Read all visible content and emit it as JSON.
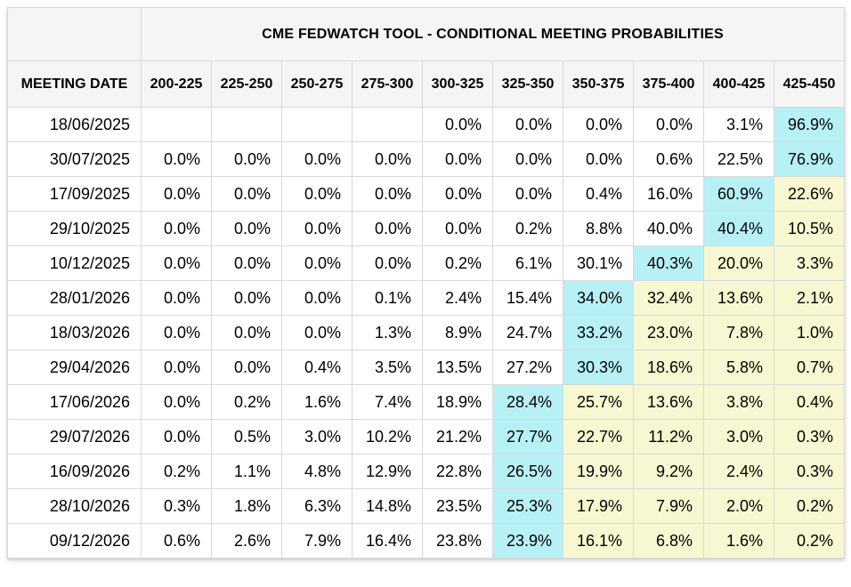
{
  "colors": {
    "header_bg": "#f5f5f6",
    "grid_border": "#d9d9d9",
    "max_probability_highlight": "#b7f0f5",
    "right_tail_highlight": "#f7f7d1"
  },
  "chart_data": {
    "type": "table",
    "title": "CME FEDWATCH TOOL - CONDITIONAL MEETING PROBABILITIES",
    "row_header": "MEETING DATE",
    "columns": [
      "200-225",
      "225-250",
      "250-275",
      "275-300",
      "300-325",
      "325-350",
      "350-375",
      "375-400",
      "400-425",
      "425-450"
    ],
    "legend": {
      "cyan_cells": "highest probability in row",
      "yellow_cells": "cells right of highest probability"
    },
    "rows": [
      {
        "date": "18/06/2025",
        "values": [
          "",
          "",
          "",
          "",
          "0.0%",
          "0.0%",
          "0.0%",
          "0.0%",
          "3.1%",
          "96.9%"
        ],
        "max_col": 9
      },
      {
        "date": "30/07/2025",
        "values": [
          "0.0%",
          "0.0%",
          "0.0%",
          "0.0%",
          "0.0%",
          "0.0%",
          "0.0%",
          "0.6%",
          "22.5%",
          "76.9%"
        ],
        "max_col": 9
      },
      {
        "date": "17/09/2025",
        "values": [
          "0.0%",
          "0.0%",
          "0.0%",
          "0.0%",
          "0.0%",
          "0.0%",
          "0.4%",
          "16.0%",
          "60.9%",
          "22.6%"
        ],
        "max_col": 8
      },
      {
        "date": "29/10/2025",
        "values": [
          "0.0%",
          "0.0%",
          "0.0%",
          "0.0%",
          "0.0%",
          "0.2%",
          "8.8%",
          "40.0%",
          "40.4%",
          "10.5%"
        ],
        "max_col": 8
      },
      {
        "date": "10/12/2025",
        "values": [
          "0.0%",
          "0.0%",
          "0.0%",
          "0.0%",
          "0.2%",
          "6.1%",
          "30.1%",
          "40.3%",
          "20.0%",
          "3.3%"
        ],
        "max_col": 7
      },
      {
        "date": "28/01/2026",
        "values": [
          "0.0%",
          "0.0%",
          "0.0%",
          "0.1%",
          "2.4%",
          "15.4%",
          "34.0%",
          "32.4%",
          "13.6%",
          "2.1%"
        ],
        "max_col": 6
      },
      {
        "date": "18/03/2026",
        "values": [
          "0.0%",
          "0.0%",
          "0.0%",
          "1.3%",
          "8.9%",
          "24.7%",
          "33.2%",
          "23.0%",
          "7.8%",
          "1.0%"
        ],
        "max_col": 6
      },
      {
        "date": "29/04/2026",
        "values": [
          "0.0%",
          "0.0%",
          "0.4%",
          "3.5%",
          "13.5%",
          "27.2%",
          "30.3%",
          "18.6%",
          "5.8%",
          "0.7%"
        ],
        "max_col": 6
      },
      {
        "date": "17/06/2026",
        "values": [
          "0.0%",
          "0.2%",
          "1.6%",
          "7.4%",
          "18.9%",
          "28.4%",
          "25.7%",
          "13.6%",
          "3.8%",
          "0.4%"
        ],
        "max_col": 5
      },
      {
        "date": "29/07/2026",
        "values": [
          "0.0%",
          "0.5%",
          "3.0%",
          "10.2%",
          "21.2%",
          "27.7%",
          "22.7%",
          "11.2%",
          "3.0%",
          "0.3%"
        ],
        "max_col": 5
      },
      {
        "date": "16/09/2026",
        "values": [
          "0.2%",
          "1.1%",
          "4.8%",
          "12.9%",
          "22.8%",
          "26.5%",
          "19.9%",
          "9.2%",
          "2.4%",
          "0.3%"
        ],
        "max_col": 5
      },
      {
        "date": "28/10/2026",
        "values": [
          "0.3%",
          "1.8%",
          "6.3%",
          "14.8%",
          "23.5%",
          "25.3%",
          "17.9%",
          "7.9%",
          "2.0%",
          "0.2%"
        ],
        "max_col": 5
      },
      {
        "date": "09/12/2026",
        "values": [
          "0.6%",
          "2.6%",
          "7.9%",
          "16.4%",
          "23.8%",
          "23.9%",
          "16.1%",
          "6.8%",
          "1.6%",
          "0.2%"
        ],
        "max_col": 5
      }
    ]
  }
}
